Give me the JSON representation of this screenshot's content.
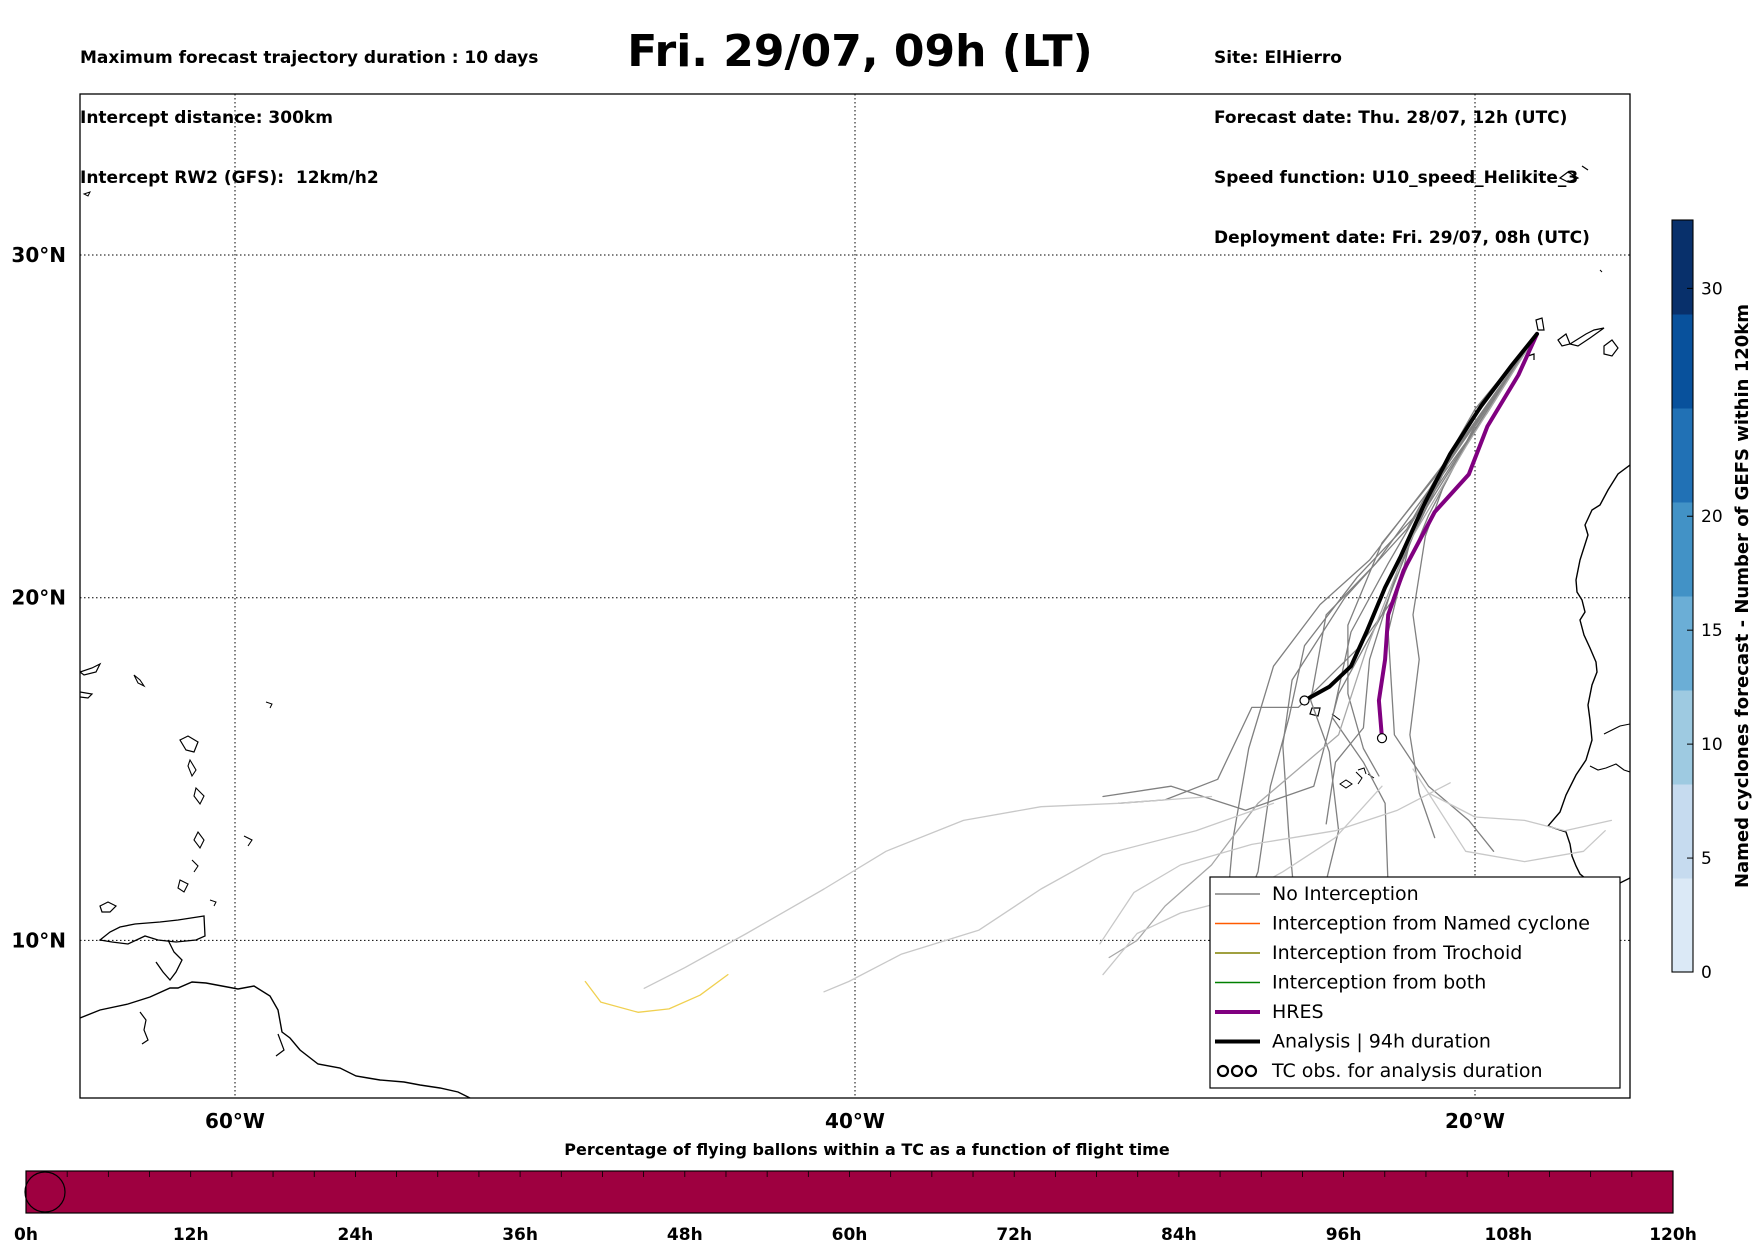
{
  "header": {
    "left_lines": [
      "Maximum forecast trajectory duration : 10 days",
      "Intercept distance: 300km",
      "Intercept RW2 (GFS):  12km/h2"
    ],
    "title": "Fri. 29/07, 09h (LT)",
    "right_lines": [
      "Site: ElHierro",
      "Forecast date: Thu. 28/07, 12h (UTC)",
      "Speed function: U10_speed_Helikite_3",
      "Deployment date: Fri. 29/07, 08h (UTC)"
    ]
  },
  "map": {
    "lon_range": [
      -65,
      -15
    ],
    "lat_range": [
      5.4,
      34.7
    ],
    "lon_ticks": [
      {
        "value": -60,
        "label": "60°W"
      },
      {
        "value": -40,
        "label": "40°W"
      },
      {
        "value": -20,
        "label": "20°W"
      }
    ],
    "lat_ticks": [
      {
        "value": 10,
        "label": "10°N"
      },
      {
        "value": 20,
        "label": "20°N"
      },
      {
        "value": 30,
        "label": "30°N"
      }
    ],
    "gridlines": "dotted",
    "site_lonlat": [
      -18.0,
      27.7
    ],
    "legend": {
      "position": "lower-right",
      "items": [
        {
          "label": "No Interception",
          "color": "#808080",
          "style": "line"
        },
        {
          "label": "Interception from Named cyclone",
          "color": "#ff5a00",
          "style": "line"
        },
        {
          "label": "Interception from Trochoid",
          "color": "#808000",
          "style": "line"
        },
        {
          "label": "Interception from both",
          "color": "#008000",
          "style": "line"
        },
        {
          "label": "HRES",
          "color": "#800080",
          "style": "thick-line"
        },
        {
          "label": "Analysis | 94h duration",
          "color": "#000000",
          "style": "thick-line"
        },
        {
          "label": "TC obs. for analysis duration",
          "color": "#000000",
          "style": "tc-symbols"
        }
      ]
    }
  },
  "colorbar": {
    "label": "Named cyclones forecast - Number of GEFS within 120km",
    "ticks": [
      "0",
      "5",
      "10",
      "15",
      "20",
      "30"
    ],
    "tick_values": [
      0,
      5,
      10,
      15,
      20,
      30
    ],
    "max": 33,
    "colors": [
      "#dbe9f6",
      "#c6dbef",
      "#9ecae1",
      "#6baed6",
      "#4292c6",
      "#2171b5",
      "#08519c",
      "#08306b"
    ]
  },
  "timebar": {
    "title": "Percentage of flying ballons within a TC as a function of flight time",
    "tick_labels": [
      "0h",
      "12h",
      "24h",
      "36h",
      "48h",
      "60h",
      "72h",
      "84h",
      "96h",
      "108h",
      "120h"
    ],
    "max_hours": 120,
    "fill_color": "#9e0040"
  },
  "chart_data": {
    "type": "map-trajectories",
    "series": [
      {
        "name": "Analysis | 94h duration",
        "color": "#000000",
        "lonlat": [
          [
            -18.0,
            27.7
          ],
          [
            -18.8,
            26.8
          ],
          [
            -19.8,
            25.6
          ],
          [
            -20.8,
            24.2
          ],
          [
            -21.6,
            22.8
          ],
          [
            -22.4,
            21.2
          ],
          [
            -22.9,
            20.3
          ],
          [
            -23.5,
            19.0
          ],
          [
            -24.0,
            18.0
          ],
          [
            -24.7,
            17.4
          ],
          [
            -25.5,
            17.0
          ]
        ]
      },
      {
        "name": "HRES",
        "color": "#800080",
        "lonlat": [
          [
            -18.0,
            27.7
          ],
          [
            -18.6,
            26.5
          ],
          [
            -19.6,
            25.0
          ],
          [
            -20.2,
            23.6
          ],
          [
            -21.3,
            22.5
          ],
          [
            -22.3,
            20.8
          ],
          [
            -22.8,
            19.5
          ],
          [
            -22.9,
            18.2
          ],
          [
            -23.1,
            17.0
          ],
          [
            -23.0,
            15.9
          ]
        ]
      },
      {
        "name": "No Interception",
        "color": "#808080",
        "lonlat": [
          [
            -18.0,
            27.7
          ],
          [
            -20.0,
            25.5
          ],
          [
            -22.2,
            22.0
          ],
          [
            -24.2,
            20.0
          ],
          [
            -25.9,
            17.6
          ],
          [
            -26.2,
            15.7
          ],
          [
            -26.0,
            13.0
          ],
          [
            -25.8,
            11.0
          ]
        ]
      },
      {
        "name": "No Interception",
        "color": "#808080",
        "lonlat": [
          [
            -18.0,
            27.7
          ],
          [
            -20.4,
            24.8
          ],
          [
            -22.0,
            21.8
          ],
          [
            -23.0,
            19.5
          ],
          [
            -24.4,
            17.2
          ],
          [
            -25.2,
            14.5
          ],
          [
            -27.4,
            13.8
          ],
          [
            -29.8,
            14.5
          ],
          [
            -32.0,
            14.2
          ]
        ]
      },
      {
        "name": "No Interception",
        "color": "#808080",
        "lonlat": [
          [
            -18.0,
            27.7
          ],
          [
            -19.9,
            25.2
          ],
          [
            -21.0,
            23.3
          ],
          [
            -21.6,
            21.8
          ],
          [
            -22.0,
            19.5
          ],
          [
            -21.8,
            18.2
          ],
          [
            -22.1,
            16.0
          ],
          [
            -21.8,
            14.3
          ],
          [
            -21.3,
            13.0
          ]
        ]
      },
      {
        "name": "No Interception",
        "color": "#808080",
        "lonlat": [
          [
            -18.0,
            27.7
          ],
          [
            -20.8,
            24.0
          ],
          [
            -23.2,
            21.0
          ],
          [
            -24.8,
            19.5
          ],
          [
            -25.3,
            17.0
          ],
          [
            -24.7,
            15.5
          ],
          [
            -24.4,
            13.2
          ],
          [
            -25.0,
            11.0
          ]
        ]
      },
      {
        "name": "No Interception",
        "color": "#808080",
        "lonlat": [
          [
            -18.0,
            27.7
          ],
          [
            -20.2,
            24.6
          ],
          [
            -22.0,
            22.0
          ],
          [
            -22.8,
            19.0
          ],
          [
            -22.6,
            16.0
          ],
          [
            -21.5,
            14.5
          ],
          [
            -20.2,
            13.5
          ],
          [
            -19.4,
            12.6
          ]
        ]
      },
      {
        "name": "No Interception",
        "color": "#808080",
        "lonlat": [
          [
            -18.0,
            27.7
          ],
          [
            -20.5,
            24.5
          ],
          [
            -23.4,
            21.1
          ],
          [
            -25.0,
            19.8
          ],
          [
            -26.5,
            18.0
          ],
          [
            -27.3,
            15.6
          ],
          [
            -27.8,
            13.0
          ],
          [
            -28.0,
            11.0
          ]
        ]
      },
      {
        "name": "No Interception",
        "color": "#808080",
        "lonlat": [
          [
            -18.0,
            27.7
          ],
          [
            -21.0,
            23.8
          ],
          [
            -22.8,
            21.0
          ],
          [
            -24.0,
            19.0
          ],
          [
            -24.6,
            16.5
          ],
          [
            -23.6,
            15.2
          ],
          [
            -22.9,
            14.0
          ],
          [
            -22.8,
            11.5
          ]
        ]
      },
      {
        "name": "No Interception",
        "color": "#808080",
        "lonlat": [
          [
            -18.0,
            27.7
          ],
          [
            -21.6,
            22.7
          ],
          [
            -23.8,
            20.6
          ],
          [
            -25.5,
            18.6
          ],
          [
            -26.0,
            16.5
          ],
          [
            -26.6,
            14.5
          ],
          [
            -27.0,
            12.0
          ],
          [
            -27.8,
            10.2
          ]
        ]
      },
      {
        "name": "No Interception",
        "color": "#808080",
        "lonlat": [
          [
            -18.0,
            27.7
          ],
          [
            -20.0,
            25.0
          ],
          [
            -21.5,
            22.4
          ],
          [
            -22.6,
            20.0
          ],
          [
            -23.8,
            18.5
          ],
          [
            -25.7,
            16.8
          ],
          [
            -27.2,
            16.8
          ],
          [
            -28.3,
            14.7
          ],
          [
            -30.0,
            14.1
          ],
          [
            -31.5,
            14.0
          ]
        ]
      },
      {
        "name": "No Interception",
        "color": "#808080",
        "lonlat": [
          [
            -18.0,
            27.7
          ],
          [
            -19.6,
            25.4
          ],
          [
            -21.2,
            23.4
          ],
          [
            -22.5,
            20.8
          ],
          [
            -23.4,
            18.2
          ],
          [
            -23.6,
            16.2
          ],
          [
            -24.5,
            15.2
          ],
          [
            -24.8,
            13.4
          ]
        ]
      },
      {
        "name": "No Interception",
        "color": "#808080",
        "lonlat": [
          [
            -18.0,
            27.7
          ],
          [
            -20.6,
            24.3
          ],
          [
            -23.0,
            21.6
          ],
          [
            -24.1,
            19.2
          ],
          [
            -24.1,
            17.2
          ],
          [
            -23.6,
            15.6
          ],
          [
            -23.1,
            14.8
          ]
        ]
      },
      {
        "name": "No Interception",
        "color": "#a8a8a8",
        "lonlat": [
          [
            -18.0,
            27.7
          ],
          [
            -20.3,
            24.4
          ],
          [
            -22.2,
            21.5
          ],
          [
            -23.5,
            18.5
          ],
          [
            -24.4,
            16.0
          ],
          [
            -27.0,
            14.0
          ],
          [
            -28.5,
            12.2
          ],
          [
            -30.0,
            11.0
          ],
          [
            -30.9,
            10.0
          ],
          [
            -31.8,
            9.5
          ]
        ]
      },
      {
        "name": "No Interception",
        "color": "#c8c8c8",
        "lonlat": [
          [
            -26.5,
            14.0
          ],
          [
            -29.0,
            13.2
          ],
          [
            -32.0,
            12.5
          ],
          [
            -34.0,
            11.5
          ],
          [
            -36.0,
            10.3
          ],
          [
            -38.5,
            9.6
          ],
          [
            -40.2,
            8.8
          ],
          [
            -41.0,
            8.5
          ]
        ]
      },
      {
        "name": "No Interception",
        "color": "#c8c8c8",
        "lonlat": [
          [
            -28.5,
            14.2
          ],
          [
            -31.5,
            14.0
          ],
          [
            -34.0,
            13.9
          ],
          [
            -36.5,
            13.5
          ],
          [
            -39.0,
            12.6
          ],
          [
            -41.0,
            11.5
          ],
          [
            -43.5,
            10.2
          ],
          [
            -45.5,
            9.2
          ],
          [
            -46.8,
            8.6
          ]
        ]
      },
      {
        "name": "No Interception",
        "color": "#c8c8c8",
        "lonlat": [
          [
            -20.8,
            14.6
          ],
          [
            -22.5,
            13.8
          ],
          [
            -24.5,
            13.2
          ],
          [
            -27.2,
            12.8
          ],
          [
            -29.5,
            12.2
          ],
          [
            -31.0,
            11.4
          ],
          [
            -32.1,
            9.9
          ]
        ]
      },
      {
        "name": "No Interception",
        "color": "#c8c8c8",
        "lonlat": [
          [
            -23.0,
            14.5
          ],
          [
            -24.5,
            13.0
          ],
          [
            -26.2,
            12.0
          ],
          [
            -27.8,
            11.2
          ],
          [
            -29.5,
            10.8
          ],
          [
            -30.9,
            10.2
          ],
          [
            -32.0,
            9.0
          ]
        ]
      },
      {
        "name": "No Interception",
        "color": "#c8c8c8",
        "lonlat": [
          [
            -21.5,
            14.3
          ],
          [
            -20.0,
            13.6
          ],
          [
            -18.4,
            13.5
          ],
          [
            -17.1,
            13.2
          ],
          [
            -15.6,
            13.5
          ]
        ]
      },
      {
        "name": "No Interception",
        "color": "#c8c8c8",
        "lonlat": [
          [
            -22.0,
            15.0
          ],
          [
            -20.3,
            12.6
          ],
          [
            -18.4,
            12.3
          ],
          [
            -16.5,
            12.6
          ],
          [
            -15.8,
            13.2
          ]
        ]
      },
      {
        "name": "No Interception",
        "color": "#f0d050",
        "lonlat": [
          [
            -48.7,
            8.8
          ],
          [
            -48.2,
            8.2
          ],
          [
            -47.0,
            7.9
          ],
          [
            -46.0,
            8.0
          ],
          [
            -45.0,
            8.4
          ],
          [
            -44.1,
            9.0
          ]
        ]
      }
    ]
  }
}
